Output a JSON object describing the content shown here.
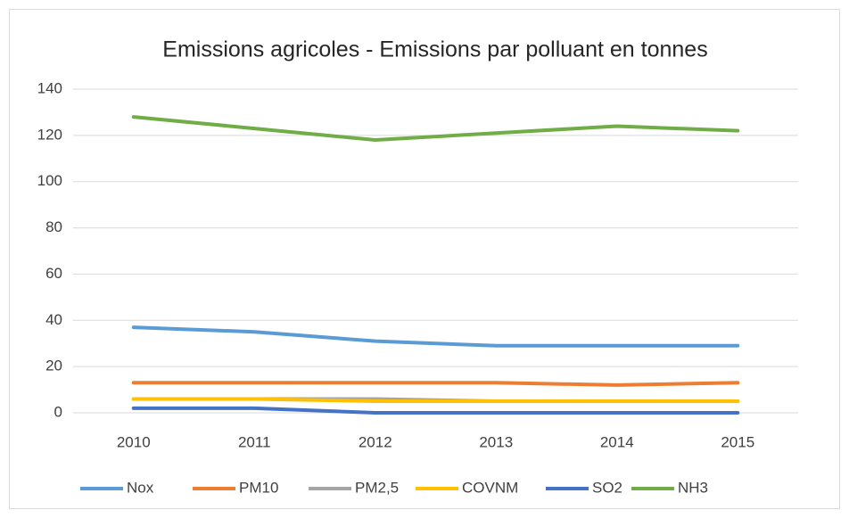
{
  "chart_data": {
    "type": "line",
    "title": "Emissions agricoles - Emissions par polluant en tonnes",
    "categories": [
      "2010",
      "2011",
      "2012",
      "2013",
      "2014",
      "2015"
    ],
    "series": [
      {
        "name": "Nox",
        "color": "#5b9bd5",
        "values": [
          37,
          35,
          31,
          29,
          29,
          29
        ]
      },
      {
        "name": "PM10",
        "color": "#ed7d31",
        "values": [
          13,
          13,
          13,
          13,
          12,
          13
        ]
      },
      {
        "name": "PM2,5",
        "color": "#a5a5a5",
        "values": [
          6,
          6,
          6,
          5,
          5,
          5
        ]
      },
      {
        "name": "COVNM",
        "color": "#ffc000",
        "values": [
          6,
          6,
          5,
          5,
          5,
          5
        ]
      },
      {
        "name": "SO2",
        "color": "#4472c4",
        "values": [
          2,
          2,
          0,
          0,
          0,
          0
        ]
      },
      {
        "name": "NH3",
        "color": "#70ad47",
        "values": [
          128,
          123,
          118,
          121,
          124,
          122
        ]
      }
    ],
    "ylim": [
      0,
      140
    ],
    "yticks": [
      0,
      20,
      40,
      60,
      80,
      100,
      120,
      140
    ],
    "grid": true,
    "legend": "bottom"
  }
}
